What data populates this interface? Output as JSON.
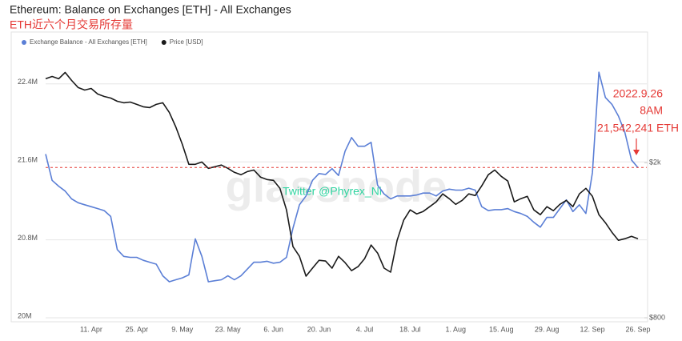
{
  "chart_data": {
    "type": "line",
    "title": "Ethereum: Balance on Exchanges [ETH] - All Exchanges",
    "subtitle": "ETH近六个月交易所存量",
    "watermark": "glassnode",
    "credit": "Twitter @Phyrex_Ni",
    "legend": "top-left",
    "grid": true,
    "categories": [
      null,
      null,
      null,
      null,
      null,
      null,
      null,
      "11. Apr",
      null,
      null,
      null,
      null,
      null,
      null,
      "25. Apr",
      null,
      null,
      null,
      null,
      null,
      null,
      "9. May",
      null,
      null,
      null,
      null,
      null,
      null,
      "23. May",
      null,
      null,
      null,
      null,
      null,
      null,
      "6. Jun",
      null,
      null,
      null,
      null,
      null,
      null,
      "20. Jun",
      null,
      null,
      null,
      null,
      null,
      null,
      "4. Jul",
      null,
      null,
      null,
      null,
      null,
      null,
      "18. Jul",
      null,
      null,
      null,
      null,
      null,
      null,
      "1. Aug",
      null,
      null,
      null,
      null,
      null,
      null,
      "15. Aug",
      null,
      null,
      null,
      null,
      null,
      null,
      "29. Aug",
      null,
      null,
      null,
      null,
      null,
      null,
      "12. Sep",
      null,
      null,
      null,
      null,
      null,
      null,
      "26. Sep"
    ],
    "series": [
      {
        "name": "Exchange Balance - All Exchanges [ETH]",
        "color": "#5b7fd6",
        "axis": "y",
        "values": [
          21.68,
          21.41,
          21.35,
          21.3,
          21.22,
          21.18,
          21.16,
          21.14,
          21.12,
          21.1,
          21.04,
          20.7,
          20.63,
          20.62,
          20.62,
          20.59,
          20.57,
          20.55,
          20.43,
          20.37,
          20.39,
          20.41,
          20.44,
          20.81,
          20.63,
          20.37,
          20.38,
          20.39,
          20.43,
          20.39,
          20.43,
          20.5,
          20.57,
          20.57,
          20.58,
          20.56,
          20.57,
          20.62,
          20.92,
          21.16,
          21.25,
          21.41,
          21.48,
          21.47,
          21.53,
          21.46,
          21.71,
          21.85,
          21.76,
          21.76,
          21.8,
          21.36,
          21.27,
          21.22,
          21.25,
          21.25,
          21.25,
          21.26,
          21.28,
          21.28,
          21.25,
          21.3,
          21.32,
          21.31,
          21.31,
          21.33,
          21.31,
          21.14,
          21.1,
          21.11,
          21.11,
          21.12,
          21.09,
          21.07,
          21.04,
          20.98,
          20.93,
          21.03,
          21.03,
          21.12,
          21.21,
          21.09,
          21.16,
          21.07,
          21.49,
          22.52,
          22.26,
          22.19,
          22.07,
          21.9,
          21.62,
          21.54
        ]
      },
      {
        "name": "Price [USD]",
        "color": "#1a1a1a",
        "axis": "y2",
        "values": [
          2650,
          2668,
          2650,
          2699,
          2637,
          2582,
          2563,
          2575,
          2532,
          2513,
          2501,
          2476,
          2464,
          2470,
          2452,
          2433,
          2427,
          2452,
          2464,
          2390,
          2278,
          2142,
          1988,
          1988,
          2006,
          1957,
          1969,
          1982,
          1957,
          1926,
          1907,
          1932,
          1944,
          1889,
          1870,
          1864,
          1802,
          1635,
          1351,
          1276,
          1122,
          1184,
          1245,
          1239,
          1184,
          1276,
          1227,
          1165,
          1196,
          1258,
          1363,
          1301,
          1184,
          1153,
          1400,
          1555,
          1635,
          1604,
          1623,
          1660,
          1697,
          1759,
          1722,
          1678,
          1709,
          1759,
          1746,
          1821,
          1907,
          1944,
          1895,
          1858,
          1697,
          1722,
          1740,
          1635,
          1598,
          1660,
          1629,
          1678,
          1709,
          1660,
          1759,
          1802,
          1740,
          1598,
          1536,
          1462,
          1400,
          1412,
          1431,
          1412
        ]
      }
    ],
    "ylim": [
      20,
      22.85
    ],
    "yticks": [
      {
        "value": 20,
        "label": "20M"
      },
      {
        "value": 20.8,
        "label": "20.8M"
      },
      {
        "value": 21.6,
        "label": "21.6M"
      },
      {
        "value": 22.4,
        "label": "22.4M"
      }
    ],
    "y2lim": [
      800,
      2950
    ],
    "y2ticks": [
      {
        "value": 800,
        "label": "$800"
      },
      {
        "value": 2000,
        "label": "$2k"
      }
    ],
    "annotation": {
      "lines": [
        "2022.9.26",
        "8AM",
        "21,542,241 ETH"
      ],
      "value": 21.542241,
      "color": "#e53935"
    }
  }
}
